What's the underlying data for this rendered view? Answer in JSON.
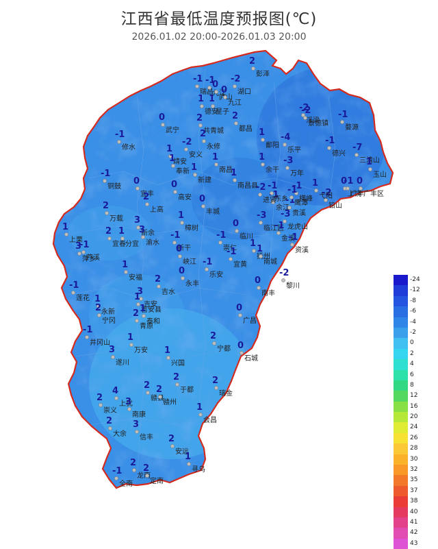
{
  "title": "江西省最低温度预报图(℃)",
  "subtitle": "2026.01.02 20:00-2026.01.03 20:00",
  "colors": {
    "boundary": "#d42a1e",
    "fill_main": "#3a8fe6",
    "fill_dark": "#2a6fd8",
    "fill_light": "#4bb4ec",
    "station": "#bfbfbf"
  },
  "stations": [
    {
      "name": "彭泽",
      "value": "2"
    },
    {
      "name": "瑞昌",
      "value": "-1"
    },
    {
      "name": "九江",
      "value": "-1"
    },
    {
      "name": "湖口",
      "value": "-2"
    },
    {
      "name": "庐山",
      "value": "0"
    },
    {
      "name": "九江",
      "value": "0"
    },
    {
      "name": "德安",
      "value": "1"
    },
    {
      "name": "星子",
      "value": "1"
    },
    {
      "name": "都昌",
      "value": "2"
    },
    {
      "name": "武宁",
      "value": "0"
    },
    {
      "name": "共青城",
      "value": "2"
    },
    {
      "name": "永修",
      "value": "2"
    },
    {
      "name": "修水",
      "value": "-1"
    },
    {
      "name": "靖安",
      "value": "1"
    },
    {
      "name": "安义",
      "value": "-2"
    },
    {
      "name": "奉新",
      "value": "1"
    },
    {
      "name": "新建",
      "value": "1"
    },
    {
      "name": "南昌",
      "value": "1"
    },
    {
      "name": "南昌县",
      "value": "1"
    },
    {
      "name": "鄱阳",
      "value": "1"
    },
    {
      "name": "余干",
      "value": "1"
    },
    {
      "name": "乐平",
      "value": "-4"
    },
    {
      "name": "万年",
      "value": "-3"
    },
    {
      "name": "浮梁",
      "value": "-2"
    },
    {
      "name": "景德镇",
      "value": "-2"
    },
    {
      "name": "婺源",
      "value": "-1"
    },
    {
      "name": "德兴",
      "value": "-1"
    },
    {
      "name": "三清山",
      "value": "-7"
    },
    {
      "name": "玉山",
      "value": "1"
    },
    {
      "name": "上饶",
      "value": "0"
    },
    {
      "name": "广丰",
      "value": "-1"
    },
    {
      "name": "广丰区",
      "value": "0"
    },
    {
      "name": "铅山",
      "value": "-2"
    },
    {
      "name": "弋阳",
      "value": "1"
    },
    {
      "name": "横峰",
      "value": "-1"
    },
    {
      "name": "贵溪",
      "value": "-1"
    },
    {
      "name": "鹰潭",
      "value": "-1"
    },
    {
      "name": "余江",
      "value": "-1"
    },
    {
      "name": "进贤",
      "value": "-2"
    },
    {
      "name": "东乡",
      "value": "-1"
    },
    {
      "name": "铜鼓",
      "value": "-1"
    },
    {
      "name": "宜丰",
      "value": "0"
    },
    {
      "name": "上高",
      "value": "2"
    },
    {
      "name": "高安",
      "value": "0"
    },
    {
      "name": "丰城",
      "value": "0"
    },
    {
      "name": "万载",
      "value": "2"
    },
    {
      "name": "宜春",
      "value": "2"
    },
    {
      "name": "新余",
      "value": "3"
    },
    {
      "name": "分宜",
      "value": "1"
    },
    {
      "name": "渝水",
      "value": "3"
    },
    {
      "name": "樟树",
      "value": "1"
    },
    {
      "name": "临川",
      "value": "0"
    },
    {
      "name": "临江区",
      "value": "-3"
    },
    {
      "name": "金溪",
      "value": "-1"
    },
    {
      "name": "龙虎山",
      "value": "-3"
    },
    {
      "name": "资溪",
      "value": "-1"
    },
    {
      "name": "上栗",
      "value": "1"
    },
    {
      "name": "萍乡",
      "value": "3"
    },
    {
      "name": "芦溪",
      "value": "-1"
    },
    {
      "name": "新干",
      "value": "-1"
    },
    {
      "name": "峡江",
      "value": "0"
    },
    {
      "name": "崇仁",
      "value": "-1"
    },
    {
      "name": "宜黄",
      "value": "-1"
    },
    {
      "name": "抚州",
      "value": "1"
    },
    {
      "name": "南城",
      "value": "1"
    },
    {
      "name": "黎川",
      "value": "-2"
    },
    {
      "name": "安福",
      "value": "1"
    },
    {
      "name": "永丰",
      "value": "0"
    },
    {
      "name": "乐安",
      "value": "-1"
    },
    {
      "name": "南丰",
      "value": "0"
    },
    {
      "name": "莲花",
      "value": "-1"
    },
    {
      "name": "吉水",
      "value": "2"
    },
    {
      "name": "吉安",
      "value": "3"
    },
    {
      "name": "吉安县",
      "value": "1"
    },
    {
      "name": "永新",
      "value": "1"
    },
    {
      "name": "青原",
      "value": "2"
    },
    {
      "name": "泰和",
      "value": "1"
    },
    {
      "name": "广昌",
      "value": "0"
    },
    {
      "name": "宁冈",
      "value": "2"
    },
    {
      "name": "井冈山",
      "value": "-1"
    },
    {
      "name": "遂川",
      "value": "3"
    },
    {
      "name": "万安",
      "value": "1"
    },
    {
      "name": "宁都",
      "value": "2"
    },
    {
      "name": "石城",
      "value": "0"
    },
    {
      "name": "兴国",
      "value": "1"
    },
    {
      "name": "于都",
      "value": "2"
    },
    {
      "name": "瑞金",
      "value": "2"
    },
    {
      "name": "赣县",
      "value": "2"
    },
    {
      "name": "赣州",
      "value": "2"
    },
    {
      "name": "上犹",
      "value": "4"
    },
    {
      "name": "崇义",
      "value": "2"
    },
    {
      "name": "南康",
      "value": "3"
    },
    {
      "name": "会昌",
      "value": "1"
    },
    {
      "name": "大余",
      "value": "2"
    },
    {
      "name": "信丰",
      "value": "3"
    },
    {
      "name": "安远",
      "value": "2"
    },
    {
      "name": "寻乌",
      "value": "1"
    },
    {
      "name": "全南",
      "value": "-1"
    },
    {
      "name": "龙南",
      "value": "2"
    },
    {
      "name": "定南",
      "value": "2"
    }
  ],
  "legend": [
    "-24",
    "-12",
    "-8",
    "-6",
    "-4",
    "-2",
    "0",
    "2",
    "4",
    "6",
    "8",
    "12",
    "16",
    "20",
    "24",
    "26",
    "28",
    "30",
    "32",
    "35",
    "37",
    "38",
    "40",
    "41",
    "42",
    "43"
  ],
  "legend_colors": [
    "#1a1acc",
    "#1f3bd8",
    "#2454e0",
    "#2a6ee4",
    "#3086e8",
    "#3aa0ec",
    "#3fc0f0",
    "#33d6ee",
    "#2ee0d0",
    "#2ee0aa",
    "#33d884",
    "#55d860",
    "#88e045",
    "#b6e83a",
    "#e0ec33",
    "#f7e233",
    "#fbc933",
    "#fbb12a",
    "#f99826",
    "#f4782a",
    "#ef5a2c",
    "#ea3d38",
    "#e53a5f",
    "#e3428a",
    "#e04cb2",
    "#de53d3"
  ]
}
